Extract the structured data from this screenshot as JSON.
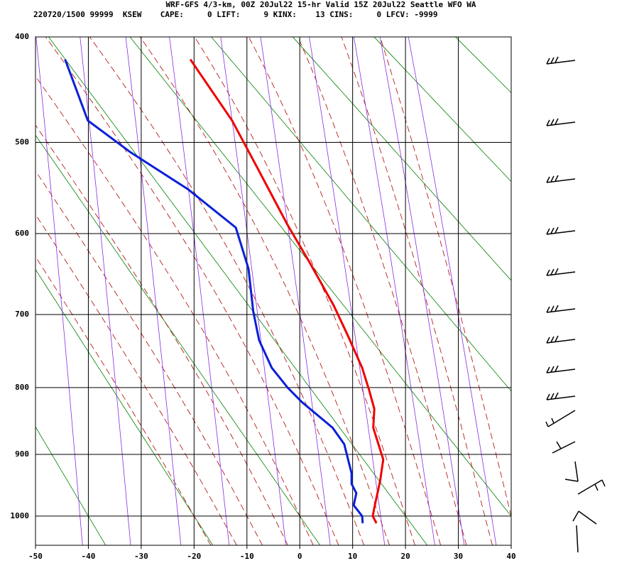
{
  "chart_data": {
    "type": "sounding",
    "title": "WRF-GFS 4/3-km, 00Z 20Jul22 15-hr Valid 15Z 20Jul22 Seattle WFO WA",
    "subtitle": "220720/1500 99999  KSEW    CAPE:     0 LIFT:     9 KINX:    13 CINS:     0 LFCV: -9999",
    "xlim": [
      -50,
      40
    ],
    "xticks": [
      -50,
      -40,
      -30,
      -20,
      -10,
      0,
      10,
      20,
      30,
      40
    ],
    "ylim": [
      400,
      1050
    ],
    "yticks": [
      400,
      500,
      600,
      700,
      800,
      900,
      1000
    ],
    "y_scale": "inverted-pressure",
    "grid": true,
    "series": [
      {
        "name": "temperature",
        "color": "#ee0000",
        "pressure": [
          420,
          478,
          527,
          590,
          635,
          688,
          728,
          772,
          803,
          831,
          859,
          908,
          942,
          986,
          1000,
          1012
        ],
        "values": [
          -20.7,
          -12.8,
          -8.0,
          -2.3,
          1.9,
          6.4,
          9.1,
          11.8,
          13.1,
          14.1,
          13.9,
          15.8,
          15.2,
          14.1,
          13.8,
          14.5
        ]
      },
      {
        "name": "dewpoint",
        "color": "#0a1fd8",
        "pressure": [
          420,
          478,
          510,
          550,
          593,
          642,
          696,
          734,
          772,
          800,
          821,
          859,
          884,
          930,
          947,
          962,
          982,
          1000,
          1012
        ],
        "values": [
          -44.4,
          -40.1,
          -32.1,
          -21.1,
          -12.1,
          -9.7,
          -8.8,
          -7.7,
          -5.3,
          -2.3,
          0.4,
          6.2,
          8.4,
          9.8,
          9.8,
          10.7,
          10.2,
          11.8,
          11.9
        ]
      }
    ]
  }
}
